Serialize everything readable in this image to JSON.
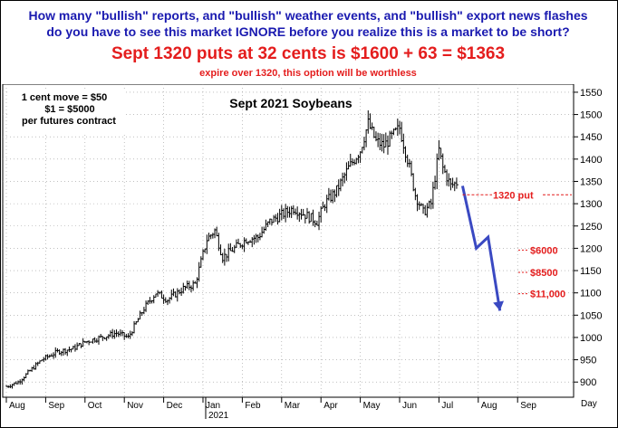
{
  "header": {
    "question_line1": "How many \"bullish\" reports, and \"bullish\" weather events, and \"bullish\" export news flashes",
    "question_line2": "do you have to see this market IGNORE before you realize this is a market to be short?",
    "headline": "Sept 1320 puts at 32 cents is $1600 + 63 = $1363",
    "subline": "expire over 1320, this option will be worthless"
  },
  "chart_data": {
    "type": "bar",
    "subtype": "ohlc-price",
    "title": "Sept 2021 Soybeans",
    "note_lines": [
      "1 cent move = $50",
      "$1 = $5000",
      "per futures contract"
    ],
    "xlabel": "",
    "ylabel": "",
    "x_axis_end_label": "Day",
    "year_label": "2021",
    "months": [
      "Aug",
      "Sep",
      "Oct",
      "Nov",
      "Dec",
      "Jan",
      "Feb",
      "Mar",
      "Apr",
      "May",
      "Jun",
      "Jul",
      "Aug",
      "Sep"
    ],
    "ylim": [
      870,
      1560
    ],
    "yticks": [
      900,
      950,
      1000,
      1050,
      1100,
      1150,
      1200,
      1250,
      1300,
      1350,
      1400,
      1450,
      1500,
      1550
    ],
    "grid": true,
    "price_path": [
      [
        0,
        890
      ],
      [
        0.3,
        900
      ],
      [
        0.6,
        925
      ],
      [
        0.9,
        950
      ],
      [
        1.3,
        968
      ],
      [
        1.7,
        975
      ],
      [
        2.0,
        990
      ],
      [
        2.4,
        1000
      ],
      [
        2.8,
        1010
      ],
      [
        3.1,
        1000
      ],
      [
        3.5,
        1065
      ],
      [
        3.8,
        1100
      ],
      [
        4.1,
        1085
      ],
      [
        4.5,
        1110
      ],
      [
        4.8,
        1120
      ],
      [
        5.1,
        1220
      ],
      [
        5.3,
        1240
      ],
      [
        5.5,
        1180
      ],
      [
        5.8,
        1200
      ],
      [
        6.1,
        1220
      ],
      [
        6.4,
        1225
      ],
      [
        6.7,
        1260
      ],
      [
        7.0,
        1275
      ],
      [
        7.3,
        1290
      ],
      [
        7.6,
        1275
      ],
      [
        7.9,
        1260
      ],
      [
        8.1,
        1300
      ],
      [
        8.4,
        1330
      ],
      [
        8.7,
        1380
      ],
      [
        9.0,
        1420
      ],
      [
        9.2,
        1480
      ],
      [
        9.4,
        1440
      ],
      [
        9.6,
        1430
      ],
      [
        9.8,
        1450
      ],
      [
        10.0,
        1470
      ],
      [
        10.2,
        1400
      ],
      [
        10.4,
        1320
      ],
      [
        10.6,
        1280
      ],
      [
        10.8,
        1300
      ],
      [
        11.0,
        1420
      ],
      [
        11.1,
        1380
      ],
      [
        11.3,
        1340
      ],
      [
        11.5,
        1350
      ]
    ],
    "projection": [
      [
        11.6,
        1340
      ],
      [
        11.95,
        1200
      ],
      [
        12.25,
        1225
      ],
      [
        12.55,
        1060
      ]
    ],
    "strike": {
      "value": 1320,
      "label": "1320 put"
    },
    "levels": [
      {
        "value": 1196,
        "label": "$6000"
      },
      {
        "value": 1146,
        "label": "$8500"
      },
      {
        "value": 1098,
        "label": "$11,000"
      }
    ],
    "colors": {
      "bars": "#000000",
      "projection": "#3a49c2",
      "annotation": "#e41d1d",
      "grid": "#9a9a9a"
    }
  }
}
